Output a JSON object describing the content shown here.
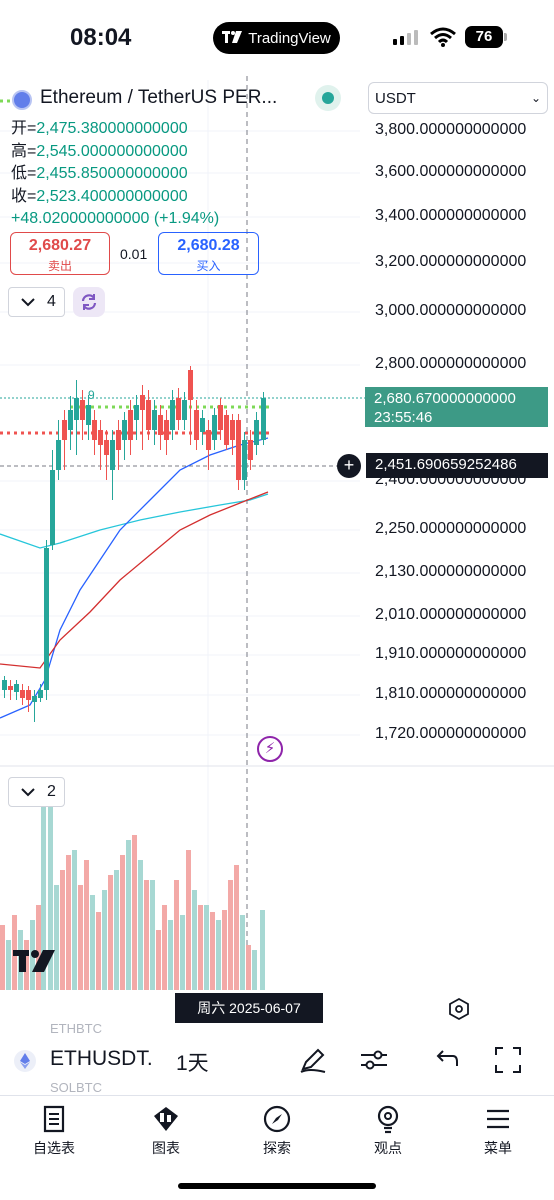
{
  "status_bar": {
    "time": "08:04",
    "app_pill": "TradingView",
    "battery": "76"
  },
  "header": {
    "symbol_title": "Ethereum / TetherUS PER...",
    "currency_select": "USDT"
  },
  "ohlc": {
    "open_label": "开=",
    "open": "2,475.380000000000",
    "high_label": "高=",
    "high": "2,545.000000000000",
    "low_label": "低=",
    "low": "2,455.850000000000",
    "close_label": "收=",
    "close": "2,523.400000000000",
    "change": "+48.020000000000 (+1.94%)"
  },
  "trade": {
    "sell_price": "2,680.27",
    "sell_label": "卖出",
    "spread": "0.01",
    "buy_price": "2,680.28",
    "buy_label": "买入"
  },
  "indicator_panes": {
    "main_count": "4",
    "volume_count": "2"
  },
  "price_axis": {
    "labels": [
      "3,800.000000000000",
      "3,600.000000000000",
      "3,400.000000000000",
      "3,200.000000000000",
      "3,000.000000000000",
      "2,800.000000000000",
      "2,400.000000000000",
      "2,250.000000000000",
      "2,130.000000000000",
      "2,010.000000000000",
      "1,910.000000000000",
      "1,810.000000000000",
      "1,720.000000000000"
    ],
    "last_price": "2,680.670000000000",
    "countdown": "23:55:46",
    "crosshair_price": "2,451.690659252486"
  },
  "chart_marker": "9",
  "crosshair_date": "周六 2025-06-07",
  "toolbar": {
    "ghost_top": "ETHBTC",
    "ghost_bottom": "SOLBTC",
    "symbol": "ETHUSDT.",
    "interval": "1天"
  },
  "nav": {
    "watchlist": "自选表",
    "chart": "图表",
    "explore": "探索",
    "ideas": "观点",
    "menu": "菜单"
  },
  "colors": {
    "up": "#26a69a",
    "down": "#ef5350",
    "accent": "#2962ff",
    "sell": "#e04a4a"
  }
}
